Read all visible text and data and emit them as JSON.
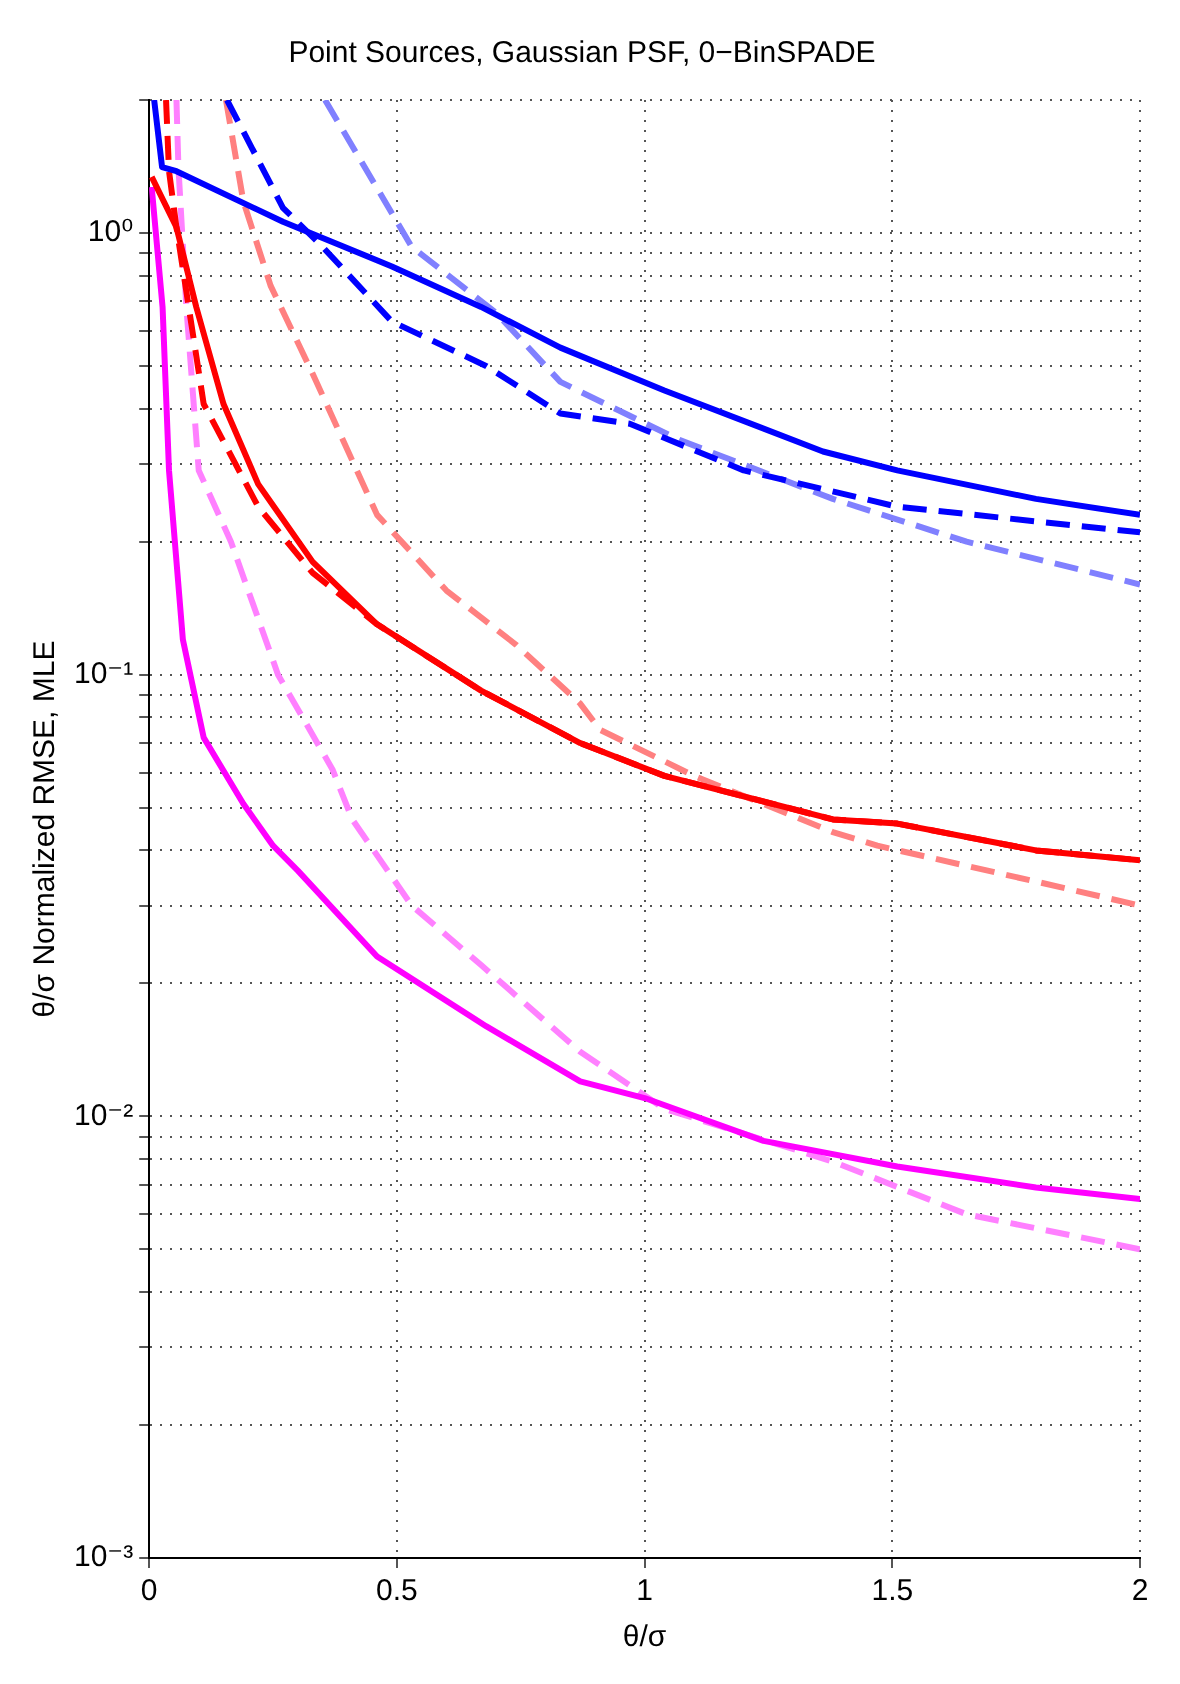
{
  "chart_data": {
    "type": "line",
    "title": "Point Sources, Gaussian PSF, 0−BinSPADE",
    "xlabel": "θ/σ",
    "ylabel": "θ/σ Normalized RMSE, MLE",
    "log": "y",
    "grid": true,
    "legend": false,
    "marker": "none",
    "xlim": [
      0,
      2
    ],
    "xticks": [
      0,
      0.5,
      1,
      1.5,
      2
    ],
    "ylim": [
      0.001,
      2
    ],
    "yticks": [
      {
        "value": 0.001,
        "label": "10⁻³"
      },
      {
        "value": 0.002,
        "label": null
      },
      {
        "value": 0.003,
        "label": null
      },
      {
        "value": 0.004,
        "label": null
      },
      {
        "value": 0.005,
        "label": null
      },
      {
        "value": 0.006,
        "label": null
      },
      {
        "value": 0.007,
        "label": null
      },
      {
        "value": 0.008,
        "label": null
      },
      {
        "value": 0.009,
        "label": null
      },
      {
        "value": 0.01,
        "label": "10⁻²"
      },
      {
        "value": 0.02,
        "label": null
      },
      {
        "value": 0.03,
        "label": null
      },
      {
        "value": 0.04,
        "label": null
      },
      {
        "value": 0.05,
        "label": null
      },
      {
        "value": 0.06,
        "label": null
      },
      {
        "value": 0.07,
        "label": null
      },
      {
        "value": 0.08,
        "label": null
      },
      {
        "value": 0.09,
        "label": null
      },
      {
        "value": 0.1,
        "label": "10⁻¹"
      },
      {
        "value": 0.2,
        "label": null
      },
      {
        "value": 0.3,
        "label": null
      },
      {
        "value": 0.4,
        "label": null
      },
      {
        "value": 0.5,
        "label": null
      },
      {
        "value": 0.6,
        "label": null
      },
      {
        "value": 0.7,
        "label": null
      },
      {
        "value": 0.8,
        "label": null
      },
      {
        "value": 0.9,
        "label": null
      },
      {
        "value": 1,
        "label": "10⁰"
      },
      {
        "value": 2,
        "label": null
      }
    ],
    "series": [
      {
        "color": "#0000ff",
        "line_style": "solid",
        "x": [
          0.01,
          0.026,
          0.055,
          0.27,
          0.49,
          0.67,
          0.83,
          1.04,
          1.36,
          1.51,
          1.79,
          2
        ],
        "values": [
          2,
          1.41,
          1.38,
          1.06,
          0.84,
          0.68,
          0.55,
          0.44,
          0.32,
          0.29,
          0.25,
          0.23
        ]
      },
      {
        "color": "#0000ff",
        "line_style": "dashed",
        "x": [
          0.157,
          0.27,
          0.35,
          0.49,
          0.68,
          0.83,
          0.97,
          1.2,
          1.51,
          2
        ],
        "values": [
          2,
          1.14,
          0.93,
          0.63,
          0.5,
          0.39,
          0.37,
          0.29,
          0.24,
          0.21
        ]
      },
      {
        "color": "#8080ff",
        "line_style": "dashed",
        "x": [
          0.355,
          0.53,
          0.7,
          0.83,
          1.07,
          1.38,
          1.65,
          2
        ],
        "values": [
          2,
          0.93,
          0.66,
          0.46,
          0.34,
          0.25,
          0.2,
          0.16
        ]
      },
      {
        "color": "#ff0000",
        "line_style": "solid",
        "x": [
          0.005,
          0.055,
          0.095,
          0.15,
          0.22,
          0.33,
          0.46,
          0.67,
          0.87,
          1.04,
          1.38,
          1.51,
          1.79,
          2
        ],
        "values": [
          1.34,
          1.03,
          0.68,
          0.41,
          0.27,
          0.18,
          0.13,
          0.092,
          0.07,
          0.059,
          0.047,
          0.046,
          0.04,
          0.038
        ]
      },
      {
        "color": "#ff0000",
        "line_style": "dashed",
        "x": [
          0.034,
          0.04,
          0.055,
          0.11,
          0.22,
          0.33,
          0.46,
          0.67,
          0.87,
          1.04,
          1.38,
          1.51,
          1.79,
          2
        ],
        "values": [
          2,
          1.38,
          1.03,
          0.41,
          0.24,
          0.17,
          0.13,
          0.092,
          0.07,
          0.059,
          0.047,
          0.046,
          0.04,
          0.038
        ]
      },
      {
        "color": "#ff8080",
        "line_style": "dashed",
        "x": [
          0.155,
          0.19,
          0.245,
          0.33,
          0.46,
          0.6,
          0.74,
          0.87,
          0.91,
          1.1,
          1.38,
          1.47,
          1.79,
          2
        ],
        "values": [
          2,
          1.18,
          0.76,
          0.48,
          0.23,
          0.155,
          0.117,
          0.086,
          0.075,
          0.059,
          0.044,
          0.041,
          0.034,
          0.03
        ]
      },
      {
        "color": "#ff00ff",
        "line_style": "solid",
        "x": [
          0.005,
          0.027,
          0.04,
          0.068,
          0.11,
          0.19,
          0.25,
          0.3,
          0.46,
          0.68,
          0.87,
          1,
          1.24,
          1.51,
          1.79,
          2
        ],
        "values": [
          1.27,
          0.68,
          0.29,
          0.12,
          0.072,
          0.051,
          0.041,
          0.036,
          0.023,
          0.016,
          0.012,
          0.011,
          0.0088,
          0.0077,
          0.0069,
          0.0065
        ]
      },
      {
        "color": "#ff80ff",
        "line_style": "dashed",
        "x": [
          0.055,
          0.059,
          0.075,
          0.1,
          0.165,
          0.26,
          0.37,
          0.41,
          0.53,
          0.67,
          0.87,
          1.04,
          1.38,
          1.65,
          2
        ],
        "values": [
          2,
          1.41,
          0.68,
          0.29,
          0.2,
          0.1,
          0.061,
          0.047,
          0.03,
          0.022,
          0.014,
          0.0104,
          0.0079,
          0.006,
          0.005
        ]
      }
    ]
  }
}
